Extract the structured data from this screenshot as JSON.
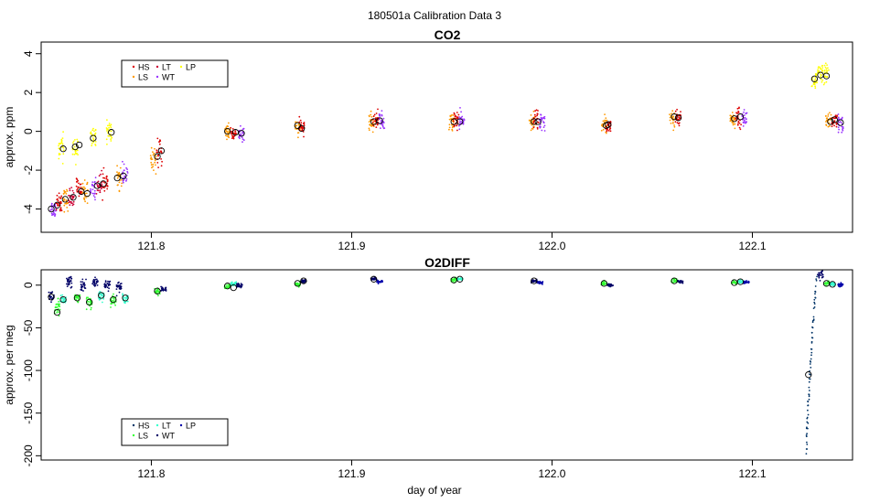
{
  "title": "180501a   Calibration Data 3",
  "chart_data": [
    {
      "type": "scatter",
      "title": "CO2",
      "ylabel": "approx. ppm",
      "xlabel": "",
      "xlim": [
        121.745,
        122.15
      ],
      "ylim": [
        -5.2,
        4.6
      ],
      "xticks": [
        121.8,
        121.9,
        122.0,
        122.1
      ],
      "xtick_labels": [
        "121.8",
        "121.9",
        "122.0",
        "122.1"
      ],
      "yticks": [
        4,
        2,
        0,
        -2,
        -4
      ],
      "ytick_labels": [
        "4",
        "2",
        "0",
        "-2",
        "-4"
      ],
      "legend": {
        "placement": "top-left",
        "entries": [
          {
            "label": "HS",
            "color": "#dd0000"
          },
          {
            "label": "LS",
            "color": "#ff9900"
          },
          {
            "label": "LT",
            "color": "#cc0033"
          },
          {
            "label": "WT",
            "color": "#9933ff"
          },
          {
            "label": "LP",
            "color": "#ffff00"
          }
        ]
      },
      "series_colors": {
        "HS": "#dd0000",
        "LS": "#ff9900",
        "LT": "#cc0033",
        "WT": "#9933ff",
        "LP": "#ffff00"
      },
      "clusters": [
        {
          "x": 121.751,
          "series": "WT",
          "mean": -4.0,
          "spread": 0.5
        },
        {
          "x": 121.754,
          "series": "HS",
          "mean": -3.6,
          "spread": 0.6
        },
        {
          "x": 121.757,
          "series": "LS",
          "mean": -3.5,
          "spread": 0.6
        },
        {
          "x": 121.76,
          "series": "LT",
          "mean": -3.4,
          "spread": 0.6
        },
        {
          "x": 121.764,
          "series": "HS",
          "mean": -3.0,
          "spread": 0.6
        },
        {
          "x": 121.767,
          "series": "LS",
          "mean": -3.1,
          "spread": 0.6
        },
        {
          "x": 121.771,
          "series": "WT",
          "mean": -2.9,
          "spread": 0.6
        },
        {
          "x": 121.774,
          "series": "LT",
          "mean": -2.8,
          "spread": 0.6
        },
        {
          "x": 121.777,
          "series": "HS",
          "mean": -2.6,
          "spread": 0.6
        },
        {
          "x": 121.784,
          "series": "LS",
          "mean": -2.4,
          "spread": 0.6
        },
        {
          "x": 121.787,
          "series": "WT",
          "mean": -2.3,
          "spread": 0.6
        },
        {
          "x": 121.755,
          "series": "LP",
          "mean": -0.9,
          "spread": 0.7
        },
        {
          "x": 121.762,
          "series": "LP",
          "mean": -0.8,
          "spread": 0.7
        },
        {
          "x": 121.771,
          "series": "LP",
          "mean": -0.4,
          "spread": 0.7
        },
        {
          "x": 121.779,
          "series": "LP",
          "mean": -0.1,
          "spread": 0.7
        },
        {
          "x": 121.804,
          "series": "HS",
          "mean": -1.1,
          "spread": 0.7
        },
        {
          "x": 121.801,
          "series": "LS",
          "mean": -1.5,
          "spread": 0.6
        },
        {
          "x": 121.838,
          "series": "LS",
          "mean": 0.0,
          "spread": 0.5
        },
        {
          "x": 121.841,
          "series": "HS",
          "mean": -0.1,
          "spread": 0.5
        },
        {
          "x": 121.845,
          "series": "WT",
          "mean": -0.2,
          "spread": 0.5
        },
        {
          "x": 121.873,
          "series": "LS",
          "mean": 0.2,
          "spread": 0.4
        },
        {
          "x": 121.875,
          "series": "HS",
          "mean": 0.2,
          "spread": 0.4
        },
        {
          "x": 121.91,
          "series": "LS",
          "mean": 0.5,
          "spread": 0.5
        },
        {
          "x": 121.912,
          "series": "HS",
          "mean": 0.6,
          "spread": 0.5
        },
        {
          "x": 121.915,
          "series": "WT",
          "mean": 0.5,
          "spread": 0.5
        },
        {
          "x": 121.95,
          "series": "LS",
          "mean": 0.5,
          "spread": 0.5
        },
        {
          "x": 121.952,
          "series": "HS",
          "mean": 0.6,
          "spread": 0.5
        },
        {
          "x": 121.955,
          "series": "WT",
          "mean": 0.5,
          "spread": 0.5
        },
        {
          "x": 121.99,
          "series": "LS",
          "mean": 0.5,
          "spread": 0.5
        },
        {
          "x": 121.992,
          "series": "HS",
          "mean": 0.6,
          "spread": 0.5
        },
        {
          "x": 121.995,
          "series": "WT",
          "mean": 0.5,
          "spread": 0.5
        },
        {
          "x": 122.026,
          "series": "LS",
          "mean": 0.3,
          "spread": 0.5
        },
        {
          "x": 122.028,
          "series": "HS",
          "mean": 0.3,
          "spread": 0.5
        },
        {
          "x": 122.06,
          "series": "LS",
          "mean": 0.7,
          "spread": 0.5
        },
        {
          "x": 122.063,
          "series": "HS",
          "mean": 0.7,
          "spread": 0.5
        },
        {
          "x": 122.09,
          "series": "LS",
          "mean": 0.6,
          "spread": 0.5
        },
        {
          "x": 122.093,
          "series": "HS",
          "mean": 0.7,
          "spread": 0.5
        },
        {
          "x": 122.096,
          "series": "WT",
          "mean": 0.7,
          "spread": 0.5
        },
        {
          "x": 122.131,
          "series": "LP",
          "mean": 2.6,
          "spread": 0.6
        },
        {
          "x": 122.134,
          "series": "LP",
          "mean": 2.9,
          "spread": 0.6
        },
        {
          "x": 122.137,
          "series": "LP",
          "mean": 2.9,
          "spread": 0.6
        },
        {
          "x": 122.138,
          "series": "LS",
          "mean": 0.6,
          "spread": 0.5
        },
        {
          "x": 122.141,
          "series": "HS",
          "mean": 0.5,
          "spread": 0.5
        },
        {
          "x": 122.144,
          "series": "WT",
          "mean": 0.4,
          "spread": 0.5
        }
      ],
      "means": [
        {
          "x": 121.75,
          "y": -4.0
        },
        {
          "x": 121.753,
          "y": -3.8
        },
        {
          "x": 121.757,
          "y": -3.5
        },
        {
          "x": 121.761,
          "y": -3.4
        },
        {
          "x": 121.765,
          "y": -3.1
        },
        {
          "x": 121.768,
          "y": -3.2
        },
        {
          "x": 121.773,
          "y": -2.8
        },
        {
          "x": 121.776,
          "y": -2.7
        },
        {
          "x": 121.783,
          "y": -2.4
        },
        {
          "x": 121.786,
          "y": -2.3
        },
        {
          "x": 121.756,
          "y": -0.9
        },
        {
          "x": 121.762,
          "y": -0.8
        },
        {
          "x": 121.764,
          "y": -0.7
        },
        {
          "x": 121.771,
          "y": -0.35
        },
        {
          "x": 121.78,
          "y": -0.05
        },
        {
          "x": 121.803,
          "y": -1.3
        },
        {
          "x": 121.805,
          "y": -1.0
        },
        {
          "x": 121.838,
          "y": 0.0
        },
        {
          "x": 121.842,
          "y": -0.05
        },
        {
          "x": 121.845,
          "y": -0.1
        },
        {
          "x": 121.873,
          "y": 0.3
        },
        {
          "x": 121.875,
          "y": 0.15
        },
        {
          "x": 121.911,
          "y": 0.5
        },
        {
          "x": 121.914,
          "y": 0.55
        },
        {
          "x": 121.951,
          "y": 0.5
        },
        {
          "x": 121.954,
          "y": 0.5
        },
        {
          "x": 121.991,
          "y": 0.5
        },
        {
          "x": 121.993,
          "y": 0.5
        },
        {
          "x": 122.027,
          "y": 0.3
        },
        {
          "x": 122.028,
          "y": 0.35
        },
        {
          "x": 122.061,
          "y": 0.75
        },
        {
          "x": 122.063,
          "y": 0.7
        },
        {
          "x": 122.091,
          "y": 0.65
        },
        {
          "x": 122.094,
          "y": 0.75
        },
        {
          "x": 122.131,
          "y": 2.7
        },
        {
          "x": 122.134,
          "y": 2.9
        },
        {
          "x": 122.137,
          "y": 2.85
        },
        {
          "x": 122.139,
          "y": 0.5
        },
        {
          "x": 122.141,
          "y": 0.6
        },
        {
          "x": 122.144,
          "y": 0.45
        }
      ]
    },
    {
      "type": "scatter",
      "title": "O2DIFF",
      "ylabel": "approx. per meg",
      "xlabel": "day of year",
      "xlim": [
        121.745,
        122.15
      ],
      "ylim": [
        -205,
        18
      ],
      "xticks": [
        121.8,
        121.9,
        122.0,
        122.1
      ],
      "xtick_labels": [
        "121.8",
        "121.9",
        "122.0",
        "122.1"
      ],
      "yticks": [
        0,
        -50,
        -100,
        -150,
        -200
      ],
      "ytick_labels": [
        "0",
        "-50",
        "-100",
        "-150",
        "-200"
      ],
      "legend": {
        "placement": "bottom-left",
        "entries": [
          {
            "label": "HS",
            "color": "#003366"
          },
          {
            "label": "LS",
            "color": "#33ff33"
          },
          {
            "label": "LT",
            "color": "#33ffcc"
          },
          {
            "label": "WT",
            "color": "#000066"
          },
          {
            "label": "LP",
            "color": "#0000aa"
          }
        ]
      },
      "series_colors": {
        "HS": "#003366",
        "LS": "#33ff33",
        "LT": "#33ffcc",
        "WT": "#000066",
        "LP": "#0000aa"
      },
      "clusters": [
        {
          "x": 121.75,
          "series": "WT",
          "mean": -14,
          "spread": 7
        },
        {
          "x": 121.753,
          "series": "LS",
          "mean": -28,
          "spread": 12
        },
        {
          "x": 121.756,
          "series": "LT",
          "mean": -16,
          "spread": 6
        },
        {
          "x": 121.759,
          "series": "WT",
          "mean": 4,
          "spread": 6
        },
        {
          "x": 121.763,
          "series": "LS",
          "mean": -15,
          "spread": 6
        },
        {
          "x": 121.766,
          "series": "WT",
          "mean": 0,
          "spread": 7
        },
        {
          "x": 121.769,
          "series": "LS",
          "mean": -20,
          "spread": 8
        },
        {
          "x": 121.772,
          "series": "WT",
          "mean": 2,
          "spread": 7
        },
        {
          "x": 121.775,
          "series": "LT",
          "mean": -13,
          "spread": 6
        },
        {
          "x": 121.778,
          "series": "WT",
          "mean": 0,
          "spread": 7
        },
        {
          "x": 121.781,
          "series": "LS",
          "mean": -17,
          "spread": 7
        },
        {
          "x": 121.784,
          "series": "WT",
          "mean": -2,
          "spread": 7
        },
        {
          "x": 121.787,
          "series": "LT",
          "mean": -15,
          "spread": 6
        },
        {
          "x": 121.803,
          "series": "LS",
          "mean": -7,
          "spread": 4
        },
        {
          "x": 121.806,
          "series": "WT",
          "mean": -5,
          "spread": 3
        },
        {
          "x": 121.838,
          "series": "LS",
          "mean": -2,
          "spread": 3
        },
        {
          "x": 121.841,
          "series": "LT",
          "mean": 1,
          "spread": 3
        },
        {
          "x": 121.844,
          "series": "WT",
          "mean": 0,
          "spread": 3
        },
        {
          "x": 121.873,
          "series": "LS",
          "mean": 1,
          "spread": 3
        },
        {
          "x": 121.876,
          "series": "WT",
          "mean": 5,
          "spread": 2
        },
        {
          "x": 121.911,
          "series": "WT",
          "mean": 7,
          "spread": 2
        },
        {
          "x": 121.914,
          "series": "LP",
          "mean": 4,
          "spread": 2
        },
        {
          "x": 121.951,
          "series": "LS",
          "mean": 6,
          "spread": 3
        },
        {
          "x": 121.954,
          "series": "LT",
          "mean": 7,
          "spread": 2
        },
        {
          "x": 121.991,
          "series": "WT",
          "mean": 5,
          "spread": 2
        },
        {
          "x": 121.994,
          "series": "LP",
          "mean": 3,
          "spread": 2
        },
        {
          "x": 122.026,
          "series": "LS",
          "mean": 2,
          "spread": 3
        },
        {
          "x": 122.029,
          "series": "WT",
          "mean": 0,
          "spread": 2
        },
        {
          "x": 122.061,
          "series": "LS",
          "mean": 5,
          "spread": 3
        },
        {
          "x": 122.064,
          "series": "WT",
          "mean": 4,
          "spread": 2
        },
        {
          "x": 122.091,
          "series": "LS",
          "mean": 3,
          "spread": 3
        },
        {
          "x": 122.094,
          "series": "LT",
          "mean": 4,
          "spread": 2
        },
        {
          "x": 122.097,
          "series": "LP",
          "mean": 3,
          "spread": 2
        },
        {
          "x": 122.134,
          "series": "WT",
          "mean": 12,
          "spread": 5
        },
        {
          "x": 122.137,
          "series": "LS",
          "mean": 2,
          "spread": 3
        },
        {
          "x": 122.14,
          "series": "LT",
          "mean": 1,
          "spread": 2
        },
        {
          "x": 122.144,
          "series": "LP",
          "mean": 0,
          "spread": 2
        }
      ],
      "drift": {
        "series": "HS",
        "x_start": 122.127,
        "x_end": 122.132,
        "y_start": -195,
        "y_end": 10
      },
      "means": [
        {
          "x": 121.75,
          "y": -14
        },
        {
          "x": 121.753,
          "y": -32
        },
        {
          "x": 121.756,
          "y": -17
        },
        {
          "x": 121.763,
          "y": -15
        },
        {
          "x": 121.769,
          "y": -20
        },
        {
          "x": 121.775,
          "y": -12
        },
        {
          "x": 121.781,
          "y": -17
        },
        {
          "x": 121.787,
          "y": -15
        },
        {
          "x": 121.803,
          "y": -7
        },
        {
          "x": 121.838,
          "y": -1
        },
        {
          "x": 121.841,
          "y": -3
        },
        {
          "x": 121.873,
          "y": 2
        },
        {
          "x": 121.876,
          "y": 5
        },
        {
          "x": 121.911,
          "y": 7
        },
        {
          "x": 121.951,
          "y": 6
        },
        {
          "x": 121.954,
          "y": 7
        },
        {
          "x": 121.991,
          "y": 5
        },
        {
          "x": 122.026,
          "y": 2
        },
        {
          "x": 122.061,
          "y": 5
        },
        {
          "x": 122.091,
          "y": 3
        },
        {
          "x": 122.094,
          "y": 4
        },
        {
          "x": 122.128,
          "y": -105
        },
        {
          "x": 122.137,
          "y": 2
        },
        {
          "x": 122.14,
          "y": 1
        }
      ]
    }
  ]
}
